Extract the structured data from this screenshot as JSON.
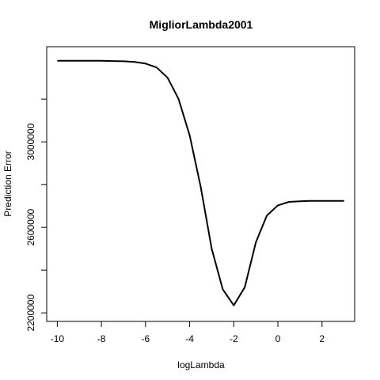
{
  "chart_data": {
    "type": "line",
    "title": "MigliorLambda2001",
    "xlabel": "logLambda",
    "ylabel": "Prediction Error",
    "xlim": [
      -10.48,
      3.48
    ],
    "ylim": [
      2160000,
      3445000
    ],
    "x_ticks": [
      -10,
      -8,
      -6,
      -4,
      -2,
      0,
      2
    ],
    "y_ticks": [
      2200000,
      2400000,
      2600000,
      2800000,
      3000000,
      3200000
    ],
    "y_tick_labels": [
      "2200000",
      "",
      "2600000",
      "",
      "3000000",
      ""
    ],
    "grid": false,
    "legend": "none",
    "x": [
      -10,
      -9.5,
      -9,
      -8.5,
      -8,
      -7.5,
      -7,
      -6.5,
      -6,
      -5.5,
      -5,
      -4.5,
      -4,
      -3.5,
      -3,
      -2.5,
      -2,
      -1.5,
      -1,
      -0.5,
      0,
      0.5,
      1,
      1.5,
      2,
      2.5,
      3
    ],
    "values": [
      3379000,
      3379000,
      3379000,
      3379000,
      3379000,
      3378000,
      3377000,
      3374000,
      3366000,
      3348000,
      3300000,
      3200000,
      3030000,
      2790000,
      2500000,
      2310000,
      2235000,
      2320000,
      2530000,
      2655000,
      2703000,
      2719000,
      2722000,
      2724000,
      2724000,
      2724000,
      2724000
    ]
  }
}
